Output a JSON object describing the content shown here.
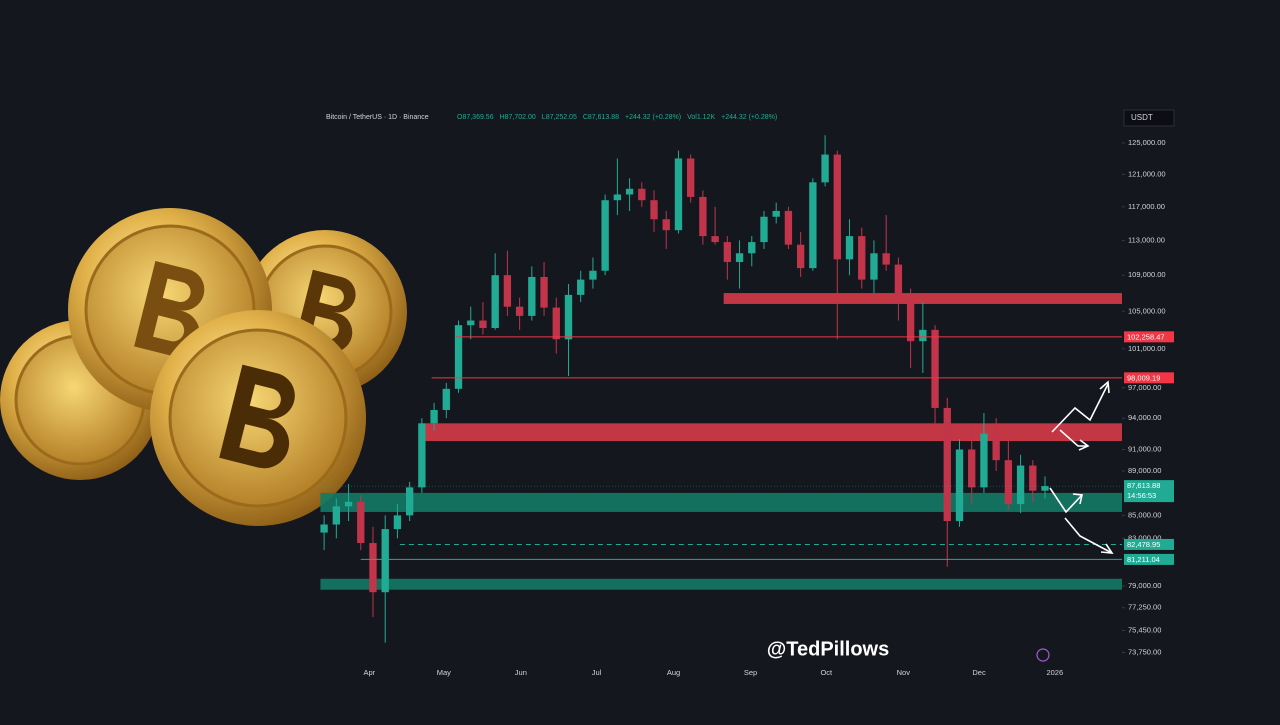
{
  "chart_data": {
    "type": "candlestick",
    "header": {
      "symbol": "Bitcoin / TetherUS · 1D · Binance",
      "ohlc": [
        "O87,369.56",
        "H87,702.00",
        "L87,252.05",
        "C87,613.88",
        "+244.32 (+0.28%)"
      ],
      "volume": "Vol1.12K",
      "change": "+244.32 (+0.28%)"
    },
    "currency": "USDT",
    "watermark": "@TedPillows",
    "log_scale": true,
    "up_color": "#22ab94",
    "down_color": "#c2344a",
    "categories": [
      null,
      null,
      null,
      null,
      null,
      null,
      null,
      null,
      null,
      null,
      null,
      null,
      null,
      null,
      null,
      null,
      null,
      null,
      null,
      null,
      null,
      null,
      null,
      null,
      null,
      null,
      null,
      null,
      null,
      null,
      null,
      null,
      null,
      null,
      null,
      null,
      null,
      null,
      null,
      null,
      null,
      null,
      null,
      null,
      null,
      null,
      null,
      null,
      null,
      null,
      null,
      null,
      null,
      null,
      null,
      null,
      null,
      null,
      null,
      null
    ],
    "open": [
      83500,
      84200,
      85800,
      86200,
      82600,
      78500,
      83800,
      85000,
      87500,
      93500,
      94800,
      96900,
      103500,
      104000,
      103200,
      109000,
      105500,
      104500,
      108800,
      105400,
      102000,
      106800,
      108500,
      109500,
      117800,
      118500,
      119200,
      117800,
      115500,
      114200,
      123000,
      118200,
      113500,
      112800,
      110500,
      111500,
      112800,
      115800,
      116500,
      112500,
      109800,
      120000,
      123500,
      110800,
      113500,
      108500,
      111500,
      110200,
      106500,
      101800,
      103000,
      95000,
      84500,
      91000,
      87500,
      92500,
      90000,
      86000,
      89500,
      87200
    ],
    "high": [
      85000,
      86500,
      87800,
      86800,
      84000,
      85000,
      86000,
      88000,
      94000,
      95500,
      97500,
      104000,
      105500,
      106000,
      111500,
      111800,
      106500,
      110000,
      110500,
      106500,
      108000,
      109500,
      111000,
      118500,
      123000,
      120500,
      120000,
      119000,
      116500,
      124000,
      123500,
      119000,
      117000,
      113500,
      113000,
      113500,
      116500,
      117500,
      117000,
      114000,
      120500,
      126000,
      124000,
      115500,
      114500,
      113000,
      116000,
      111000,
      107500,
      106000,
      103500,
      96000,
      92000,
      93500,
      94500,
      94000,
      92000,
      90500,
      90000,
      88500
    ],
    "low": [
      82000,
      83000,
      84500,
      82000,
      76500,
      74500,
      83000,
      84500,
      87000,
      92800,
      94000,
      96500,
      102000,
      102500,
      103000,
      104500,
      103000,
      104000,
      104500,
      100500,
      98200,
      106000,
      107500,
      109000,
      116000,
      116500,
      117000,
      114000,
      112000,
      113800,
      117500,
      112500,
      112500,
      108500,
      107500,
      110000,
      112000,
      115000,
      112000,
      108800,
      109500,
      119500,
      102000,
      109000,
      107500,
      107000,
      109500,
      104000,
      99000,
      98500,
      93500,
      80600,
      84000,
      86000,
      87000,
      89000,
      85500,
      85200,
      86200,
      86500
    ],
    "close": [
      84200,
      85800,
      86200,
      82600,
      78500,
      83800,
      85000,
      87500,
      93500,
      94800,
      96900,
      103500,
      104000,
      103200,
      109000,
      105500,
      104500,
      108800,
      105400,
      102000,
      106800,
      108500,
      109500,
      117800,
      118500,
      119200,
      117800,
      115500,
      114200,
      123000,
      118200,
      113500,
      112800,
      110500,
      111500,
      112800,
      115800,
      116500,
      112500,
      109800,
      120000,
      123500,
      110800,
      113500,
      108500,
      111500,
      110200,
      106500,
      101800,
      103000,
      95000,
      84500,
      91000,
      87500,
      92500,
      90000,
      86000,
      89500,
      87200,
      87613.88
    ],
    "xlim": [
      -0.5,
      65.3
    ],
    "xticks": [
      {
        "value": 3.7,
        "label": "Apr"
      },
      {
        "value": 9.8,
        "label": "May"
      },
      {
        "value": 16.1,
        "label": "Jun"
      },
      {
        "value": 22.3,
        "label": "Jul"
      },
      {
        "value": 28.6,
        "label": "Aug"
      },
      {
        "value": 34.9,
        "label": "Sep"
      },
      {
        "value": 41.1,
        "label": "Oct"
      },
      {
        "value": 47.4,
        "label": "Nov"
      },
      {
        "value": 53.6,
        "label": "Dec"
      },
      {
        "value": 59.8,
        "label": "2026"
      }
    ],
    "ylim": [
      72800,
      129600
    ],
    "yticks": [
      {
        "value": 125000,
        "label": "125,000.00"
      },
      {
        "value": 121000,
        "label": "121,000.00"
      },
      {
        "value": 117000,
        "label": "117,000.00"
      },
      {
        "value": 113000,
        "label": "113,000.00"
      },
      {
        "value": 109000,
        "label": "109,000.00"
      },
      {
        "value": 105000,
        "label": "105,000.00"
      },
      {
        "value": 101000,
        "label": "101,000.00"
      },
      {
        "value": 97000,
        "label": "97,000.00"
      },
      {
        "value": 94000,
        "label": "94,000.00"
      },
      {
        "value": 91000,
        "label": "91,000.00"
      },
      {
        "value": 89000,
        "label": "89,000.00"
      },
      {
        "value": 85000,
        "label": "85,000.00"
      },
      {
        "value": 83000,
        "label": "83,000.00"
      },
      {
        "value": 79000,
        "label": "79,000.00"
      },
      {
        "value": 77250,
        "label": "77,250.00"
      },
      {
        "value": 75450,
        "label": "75,450.00"
      },
      {
        "value": 73750,
        "label": "73,750.00"
      }
    ],
    "zones": [
      {
        "low": 105800,
        "high": 107000,
        "x_start": 32.7,
        "color": "#d63a48"
      },
      {
        "low": 91800,
        "high": 93500,
        "x_start": 8.3,
        "color": "#d63a48"
      },
      {
        "low": 85300,
        "high": 87000,
        "x_start": -0.3,
        "color": "#137a66"
      },
      {
        "low": 78700,
        "high": 79600,
        "x_start": -0.3,
        "color": "#137a66"
      }
    ],
    "levels": [
      {
        "value": 102258.47,
        "label": "102,258.47",
        "color": "#f23645",
        "dashed": false,
        "x_start": 10.8
      },
      {
        "value": 98009.19,
        "label": "98,009.19",
        "color": "#f23645",
        "dashed": false,
        "x_start": 8.8
      },
      {
        "value": 82478.95,
        "label": "82,478.95",
        "color": "#22ab94",
        "dashed": true,
        "x_start": 6.2
      },
      {
        "value": 81211.04,
        "label": "81,211.04",
        "color": "#22ab94",
        "dashed": false,
        "x_start": 3.0
      }
    ],
    "last_price": {
      "value": 87613.88,
      "label": "87,613.88",
      "countdown": "14:56:53",
      "color": "#22ab94"
    }
  }
}
